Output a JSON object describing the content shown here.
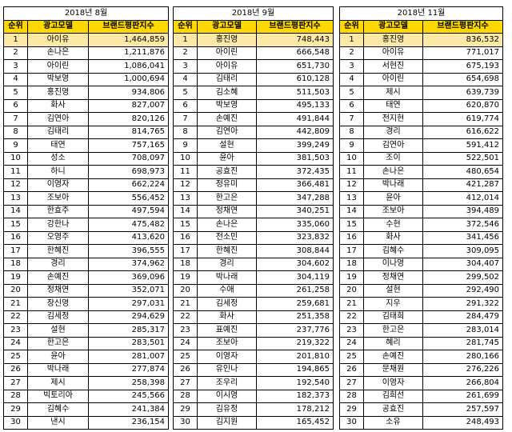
{
  "tables": [
    {
      "period": "2018년 8월",
      "headers": {
        "rank": "순위",
        "model": "광고모델",
        "score": "브랜드평판지수"
      },
      "rows": [
        {
          "rank": "1",
          "name": "아이유",
          "score": "1,464,859"
        },
        {
          "rank": "2",
          "name": "손나은",
          "score": "1,211,876"
        },
        {
          "rank": "3",
          "name": "아이린",
          "score": "1,086,041"
        },
        {
          "rank": "4",
          "name": "박보영",
          "score": "1,000,694"
        },
        {
          "rank": "5",
          "name": "홍진영",
          "score": "934,806"
        },
        {
          "rank": "6",
          "name": "화사",
          "score": "827,007"
        },
        {
          "rank": "7",
          "name": "김연아",
          "score": "820,126"
        },
        {
          "rank": "8",
          "name": "김태리",
          "score": "814,765"
        },
        {
          "rank": "9",
          "name": "태연",
          "score": "757,165"
        },
        {
          "rank": "10",
          "name": "성소",
          "score": "708,097"
        },
        {
          "rank": "11",
          "name": "하니",
          "score": "698,973"
        },
        {
          "rank": "12",
          "name": "이영자",
          "score": "662,224"
        },
        {
          "rank": "13",
          "name": "조보아",
          "score": "556,452"
        },
        {
          "rank": "14",
          "name": "한효주",
          "score": "497,594"
        },
        {
          "rank": "15",
          "name": "강한나",
          "score": "475,482"
        },
        {
          "rank": "16",
          "name": "오영주",
          "score": "413,620"
        },
        {
          "rank": "17",
          "name": "한혜진",
          "score": "396,555"
        },
        {
          "rank": "18",
          "name": "경리",
          "score": "374,962"
        },
        {
          "rank": "19",
          "name": "손예진",
          "score": "369,096"
        },
        {
          "rank": "20",
          "name": "정채연",
          "score": "352,071"
        },
        {
          "rank": "21",
          "name": "장신영",
          "score": "297,031"
        },
        {
          "rank": "22",
          "name": "김세정",
          "score": "294,629"
        },
        {
          "rank": "23",
          "name": "설현",
          "score": "285,317"
        },
        {
          "rank": "24",
          "name": "한고은",
          "score": "283,501"
        },
        {
          "rank": "25",
          "name": "윤아",
          "score": "281,007"
        },
        {
          "rank": "26",
          "name": "박나래",
          "score": "277,874"
        },
        {
          "rank": "27",
          "name": "제시",
          "score": "258,398"
        },
        {
          "rank": "28",
          "name": "빅토리아",
          "score": "245,566"
        },
        {
          "rank": "29",
          "name": "김혜수",
          "score": "241,384"
        },
        {
          "rank": "30",
          "name": "낸시",
          "score": "236,154"
        }
      ]
    },
    {
      "period": "2018년 9월",
      "headers": {
        "rank": "순위",
        "model": "광고모델",
        "score": "브랜드평판지수"
      },
      "rows": [
        {
          "rank": "1",
          "name": "홍진영",
          "score": "748,443"
        },
        {
          "rank": "2",
          "name": "아이린",
          "score": "666,548"
        },
        {
          "rank": "3",
          "name": "아이유",
          "score": "651,730"
        },
        {
          "rank": "4",
          "name": "김태리",
          "score": "610,128"
        },
        {
          "rank": "5",
          "name": "김소혜",
          "score": "511,503"
        },
        {
          "rank": "6",
          "name": "박보영",
          "score": "495,133"
        },
        {
          "rank": "7",
          "name": "손예진",
          "score": "491,844"
        },
        {
          "rank": "8",
          "name": "김연아",
          "score": "442,809"
        },
        {
          "rank": "9",
          "name": "설현",
          "score": "399,249"
        },
        {
          "rank": "10",
          "name": "윤아",
          "score": "381,503"
        },
        {
          "rank": "11",
          "name": "공효진",
          "score": "372,435"
        },
        {
          "rank": "12",
          "name": "정유미",
          "score": "366,481"
        },
        {
          "rank": "13",
          "name": "한고은",
          "score": "347,288"
        },
        {
          "rank": "14",
          "name": "정채연",
          "score": "340,251"
        },
        {
          "rank": "15",
          "name": "손나은",
          "score": "335,060"
        },
        {
          "rank": "16",
          "name": "전소민",
          "score": "323,832"
        },
        {
          "rank": "17",
          "name": "한혜진",
          "score": "308,844"
        },
        {
          "rank": "18",
          "name": "경리",
          "score": "304,602"
        },
        {
          "rank": "19",
          "name": "박나래",
          "score": "304,119"
        },
        {
          "rank": "20",
          "name": "수애",
          "score": "261,258"
        },
        {
          "rank": "21",
          "name": "김세정",
          "score": "259,681"
        },
        {
          "rank": "22",
          "name": "화사",
          "score": "251,358"
        },
        {
          "rank": "23",
          "name": "표예진",
          "score": "237,776"
        },
        {
          "rank": "24",
          "name": "조보아",
          "score": "219,322"
        },
        {
          "rank": "25",
          "name": "이영자",
          "score": "201,810"
        },
        {
          "rank": "26",
          "name": "유인나",
          "score": "194,865"
        },
        {
          "rank": "27",
          "name": "조우리",
          "score": "192,540"
        },
        {
          "rank": "28",
          "name": "이시영",
          "score": "182,373"
        },
        {
          "rank": "29",
          "name": "김유정",
          "score": "178,212"
        },
        {
          "rank": "30",
          "name": "김지원",
          "score": "165,452"
        }
      ]
    },
    {
      "period": "2018년 11월",
      "headers": {
        "rank": "순위",
        "model": "광고모델",
        "score": "브랜드평판지수"
      },
      "rows": [
        {
          "rank": "1",
          "name": "홍진영",
          "score": "836,532"
        },
        {
          "rank": "2",
          "name": "아이유",
          "score": "771,017"
        },
        {
          "rank": "3",
          "name": "서현진",
          "score": "675,193"
        },
        {
          "rank": "4",
          "name": "아이린",
          "score": "654,698"
        },
        {
          "rank": "5",
          "name": "제시",
          "score": "639,739"
        },
        {
          "rank": "6",
          "name": "태연",
          "score": "620,870"
        },
        {
          "rank": "7",
          "name": "전지현",
          "score": "619,774"
        },
        {
          "rank": "8",
          "name": "경리",
          "score": "616,622"
        },
        {
          "rank": "9",
          "name": "김연아",
          "score": "591,412"
        },
        {
          "rank": "10",
          "name": "조이",
          "score": "522,501"
        },
        {
          "rank": "11",
          "name": "손나은",
          "score": "480,654"
        },
        {
          "rank": "12",
          "name": "박나래",
          "score": "421,287"
        },
        {
          "rank": "13",
          "name": "윤아",
          "score": "412,014"
        },
        {
          "rank": "14",
          "name": "조보아",
          "score": "394,489"
        },
        {
          "rank": "15",
          "name": "수현",
          "score": "372,546"
        },
        {
          "rank": "16",
          "name": "화사",
          "score": "341,456"
        },
        {
          "rank": "17",
          "name": "김혜수",
          "score": "309,095"
        },
        {
          "rank": "18",
          "name": "이나영",
          "score": "304,407"
        },
        {
          "rank": "19",
          "name": "정채연",
          "score": "299,502"
        },
        {
          "rank": "20",
          "name": "설현",
          "score": "292,490"
        },
        {
          "rank": "21",
          "name": "지우",
          "score": "291,322"
        },
        {
          "rank": "22",
          "name": "김태희",
          "score": "284,479"
        },
        {
          "rank": "23",
          "name": "한고은",
          "score": "283,014"
        },
        {
          "rank": "24",
          "name": "혜리",
          "score": "281,745"
        },
        {
          "rank": "25",
          "name": "손예진",
          "score": "280,166"
        },
        {
          "rank": "26",
          "name": "문채원",
          "score": "276,226"
        },
        {
          "rank": "27",
          "name": "이영자",
          "score": "266,804"
        },
        {
          "rank": "28",
          "name": "김희선",
          "score": "261,699"
        },
        {
          "rank": "29",
          "name": "공효진",
          "score": "257,597"
        },
        {
          "rank": "30",
          "name": "소유",
          "score": "248,493"
        }
      ]
    }
  ]
}
